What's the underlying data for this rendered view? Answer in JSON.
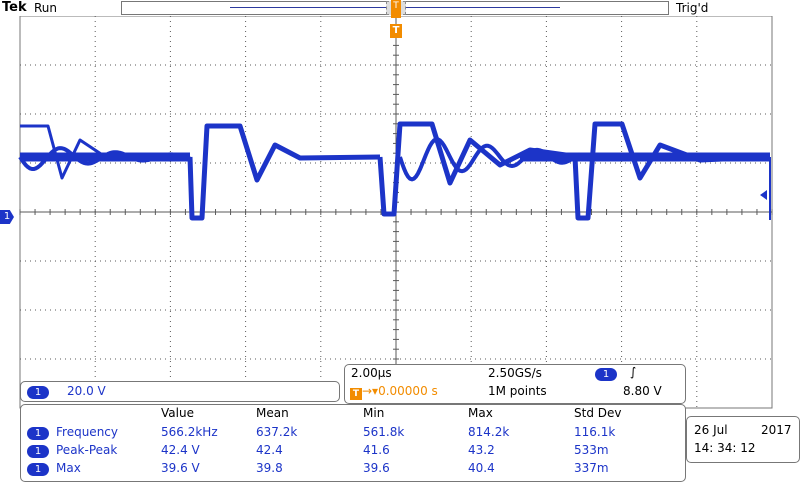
{
  "header": {
    "brand": "Tek",
    "acquisition_state": "Run",
    "trigger_status": "Trig'd",
    "trigger_marker": "T"
  },
  "channel1": {
    "label": "1",
    "scale": "20.0 V",
    "color": "#1c34c8"
  },
  "timebase": {
    "horizontal_scale": "2.00µs",
    "sample_rate": "2.50GS/s",
    "trigger_delay": "0.00000 s",
    "record_length": "1M points",
    "trigger_channel": "1",
    "trigger_slope_icon": "rising-edge-icon",
    "trigger_slope_glyph": "∫",
    "trigger_level": "8.80 V"
  },
  "measurements": {
    "headers": [
      "Value",
      "Mean",
      "Min",
      "Max",
      "Std Dev"
    ],
    "rows": [
      {
        "channel": "1",
        "name": "Frequency",
        "value": "566.2kHz",
        "mean": "637.2k",
        "min": "561.8k",
        "max": "814.2k",
        "std": "116.1k"
      },
      {
        "channel": "1",
        "name": "Peak-Peak",
        "value": "42.4 V",
        "mean": "42.4",
        "min": "41.6",
        "max": "43.2",
        "std": "533m"
      },
      {
        "channel": "1",
        "name": "Max",
        "value": "39.6 V",
        "mean": "39.8",
        "min": "39.6",
        "max": "40.4",
        "std": "337m"
      }
    ]
  },
  "datetime": {
    "date_day": "26 Jul",
    "date_year": "2017",
    "time": "14: 34: 12"
  },
  "colors": {
    "trace": "#1c34c8",
    "trigger": "#f28c00",
    "grid": "#5a5a5a"
  }
}
